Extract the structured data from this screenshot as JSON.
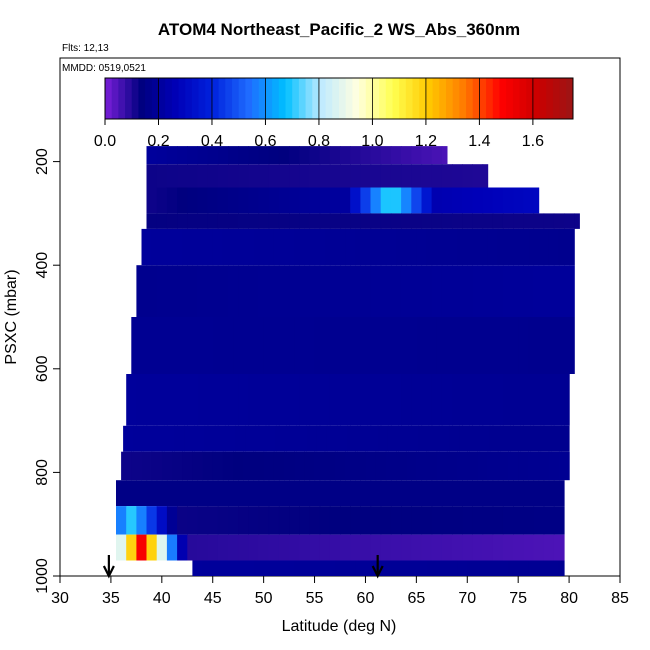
{
  "chart_data": {
    "type": "heatmap",
    "title": "ATOM4 Northeast_Pacific_2 WS_Abs_360nm",
    "subtitle_flights": "Flts: 12,13",
    "subtitle_dates": "MMDD: 0519,0521",
    "xlabel": "Latitude (deg N)",
    "ylabel": "PSXC (mbar)",
    "xlim": [
      30,
      85
    ],
    "ylim": [
      1000,
      0
    ],
    "x_ticks": [
      "30",
      "35",
      "40",
      "45",
      "50",
      "55",
      "60",
      "65",
      "70",
      "75",
      "80",
      "85"
    ],
    "y_ticks": [
      "200",
      "400",
      "600",
      "800",
      "1000"
    ],
    "colorbar": {
      "range": [
        0,
        1.75
      ],
      "tick_values": [
        0.0,
        0.2,
        0.4,
        0.6,
        0.8,
        1.0,
        1.2,
        1.4,
        1.6
      ],
      "tick_labels": [
        "0.0",
        "0.2",
        "0.4",
        "0.6",
        "0.8",
        "1.0",
        "1.2",
        "1.4",
        "1.6"
      ],
      "colors": [
        "#7a1fd9",
        "#00007f",
        "#0000b8",
        "#0022dd",
        "#1f6cff",
        "#00bfff",
        "#bfeaff",
        "#ffffe0",
        "#ffff50",
        "#ffc800",
        "#ff7800",
        "#ff0000",
        "#cc0000",
        "#9b1515"
      ]
    },
    "arrows_latitude": [
      34.8,
      61.2
    ],
    "rows": [
      {
        "p_top": 170,
        "p_bot": 205,
        "lat_start": 38.5,
        "lat_end": 68,
        "v_start": 0.2,
        "v_end": 0.05
      },
      {
        "p_top": 205,
        "p_bot": 250,
        "lat_start": 38.5,
        "lat_end": 72,
        "v_start": 0.12,
        "v_end": 0.1
      },
      {
        "p_top": 250,
        "p_bot": 300,
        "lat_start": 38.5,
        "lat_end": 77,
        "v_start": 0.12,
        "v_end": 0.3,
        "hot_lat": 62,
        "hot_v": 0.75
      },
      {
        "p_top": 300,
        "p_bot": 330,
        "lat_start": 38.5,
        "lat_end": 81,
        "v_start": 0.13,
        "v_end": 0.12
      },
      {
        "p_top": 330,
        "p_bot": 400,
        "lat_start": 38,
        "lat_end": 80.5,
        "v_start": 0.2,
        "v_end": 0.17
      },
      {
        "p_top": 400,
        "p_bot": 500,
        "lat_start": 37.5,
        "lat_end": 80.5,
        "v_start": 0.17,
        "v_end": 0.2
      },
      {
        "p_top": 500,
        "p_bot": 610,
        "lat_start": 37,
        "lat_end": 80.5,
        "v_start": 0.18,
        "v_end": 0.17
      },
      {
        "p_top": 610,
        "p_bot": 710,
        "lat_start": 36.5,
        "lat_end": 80,
        "v_start": 0.2,
        "v_end": 0.18
      },
      {
        "p_top": 710,
        "p_bot": 760,
        "lat_start": 36.2,
        "lat_end": 80,
        "v_start": 0.2,
        "v_end": 0.17
      },
      {
        "p_top": 760,
        "p_bot": 815,
        "lat_start": 36,
        "lat_end": 80,
        "v_start": 0.12,
        "v_end": 0.18
      },
      {
        "p_top": 815,
        "p_bot": 865,
        "lat_start": 35.5,
        "lat_end": 79.5,
        "v_start": 0.15,
        "v_end": 0.15
      },
      {
        "p_top": 865,
        "p_bot": 920,
        "lat_start": 35.5,
        "lat_end": 79.5,
        "v_start": 0.12,
        "v_end": 0.15,
        "hot_lat": 36.5,
        "hot_v": 0.7
      },
      {
        "p_top": 920,
        "p_bot": 970,
        "lat_start": 35.5,
        "lat_end": 79.5,
        "v_start": 0.1,
        "v_end": 0.05,
        "hot_lat": 37.5,
        "hot_v": 1.5
      },
      {
        "p_top": 970,
        "p_bot": 1000,
        "lat_start": 43,
        "lat_end": 79.5,
        "v_start": 0.2,
        "v_end": 0.18
      }
    ]
  }
}
